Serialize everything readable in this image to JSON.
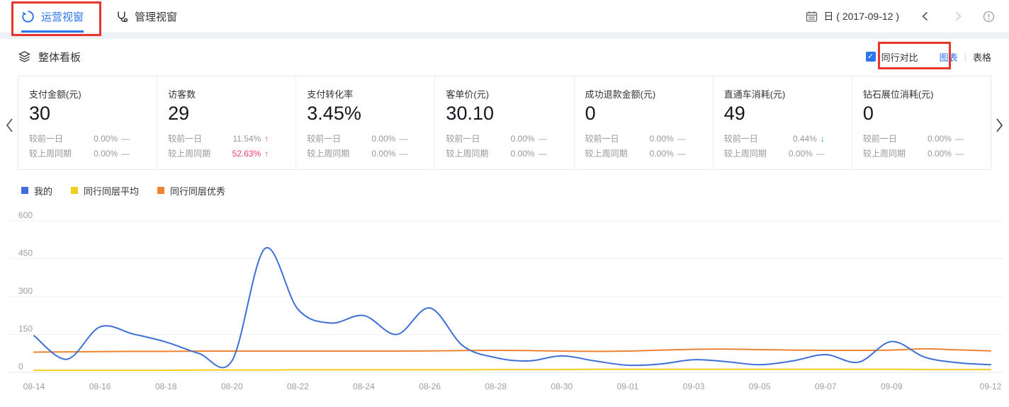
{
  "app": {
    "topbar": {
      "tabs": [
        {
          "label": "运营视窗",
          "active": true
        },
        {
          "label": "管理视窗",
          "active": false
        }
      ],
      "date_mode_label": "日 ( 2017-09-12 )"
    },
    "section": {
      "title": "整体看板",
      "peer_compare_label": "同行对比",
      "peer_compare_checked": true,
      "checkmark": "✓",
      "view_toggle": {
        "chart": "图表",
        "separator": "|",
        "table": "表格",
        "active": "图表"
      }
    },
    "cards": [
      {
        "title": "支付金额(元)",
        "value": "30",
        "rows": [
          {
            "label": "较前一日",
            "value": "0.00%",
            "trend": "flat",
            "emphasis": false
          },
          {
            "label": "较上周同期",
            "value": "0.00%",
            "trend": "flat",
            "emphasis": false
          }
        ]
      },
      {
        "title": "访客数",
        "value": "29",
        "rows": [
          {
            "label": "较前一日",
            "value": "11.54%",
            "trend": "up",
            "emphasis": false
          },
          {
            "label": "较上周同期",
            "value": "52.63%",
            "trend": "up",
            "emphasis": true
          }
        ]
      },
      {
        "title": "支付转化率",
        "value": "3.45%",
        "rows": [
          {
            "label": "较前一日",
            "value": "0.00%",
            "trend": "flat",
            "emphasis": false
          },
          {
            "label": "较上周同期",
            "value": "0.00%",
            "trend": "flat",
            "emphasis": false
          }
        ]
      },
      {
        "title": "客单价(元)",
        "value": "30.10",
        "rows": [
          {
            "label": "较前一日",
            "value": "0.00%",
            "trend": "flat",
            "emphasis": false
          },
          {
            "label": "较上周同期",
            "value": "0.00%",
            "trend": "flat",
            "emphasis": false
          }
        ]
      },
      {
        "title": "成功退款金额(元)",
        "value": "0",
        "rows": [
          {
            "label": "较前一日",
            "value": "0.00%",
            "trend": "flat",
            "emphasis": false
          },
          {
            "label": "较上周同期",
            "value": "0.00%",
            "trend": "flat",
            "emphasis": false
          }
        ]
      },
      {
        "title": "直通车消耗(元)",
        "value": "49",
        "rows": [
          {
            "label": "较前一日",
            "value": "0.44%",
            "trend": "down",
            "emphasis": false
          },
          {
            "label": "较上周同期",
            "value": "0.00%",
            "trend": "flat",
            "emphasis": false
          }
        ]
      },
      {
        "title": "钻石展位消耗(元)",
        "value": "0",
        "rows": [
          {
            "label": "较前一日",
            "value": "0.00%",
            "trend": "flat",
            "emphasis": false
          },
          {
            "label": "较上周同期",
            "value": "0.00%",
            "trend": "flat",
            "emphasis": false
          }
        ]
      }
    ],
    "legend": [
      {
        "label": "我的",
        "color": "#3E6FD8"
      },
      {
        "label": "同行同层平均",
        "color": "#F3CE1E"
      },
      {
        "label": "同行同层优秀",
        "color": "#EE8432"
      }
    ],
    "colors": {
      "accent": "#2D75EE",
      "annotation": "#E8352E",
      "up": "#F23C67",
      "down": "#0BB26C",
      "axis_text": "#9AA0A6"
    }
  },
  "chart_data": {
    "type": "line",
    "smooth": true,
    "grid": "horizontal",
    "legend_position": "top-left",
    "ylim": [
      0,
      600
    ],
    "yticks": [
      0,
      150,
      300,
      450,
      600
    ],
    "categories": [
      "08-14",
      "08-15",
      "08-16",
      "08-17",
      "08-18",
      "08-19",
      "08-20",
      "08-21",
      "08-22",
      "08-23",
      "08-24",
      "08-25",
      "08-26",
      "08-27",
      "08-28",
      "08-29",
      "08-30",
      "08-31",
      "09-01",
      "09-02",
      "09-03",
      "09-04",
      "09-05",
      "09-06",
      "09-07",
      "09-08",
      "09-09",
      "09-10",
      "09-11",
      "09-12"
    ],
    "x_tick_labels": [
      "08-14",
      "08-16",
      "08-18",
      "08-20",
      "08-22",
      "08-24",
      "08-26",
      "08-28",
      "08-30",
      "09-01",
      "09-03",
      "09-05",
      "09-07",
      "09-09",
      "09-12"
    ],
    "x_tick_indices": [
      0,
      2,
      4,
      6,
      8,
      10,
      12,
      14,
      16,
      18,
      20,
      22,
      24,
      26,
      29
    ],
    "series": [
      {
        "name": "我的",
        "color": "#3E6FD8",
        "values": [
          145,
          52,
          180,
          152,
          120,
          75,
          45,
          490,
          250,
          195,
          225,
          150,
          255,
          105,
          58,
          45,
          65,
          45,
          28,
          33,
          50,
          42,
          30,
          45,
          70,
          40,
          122,
          60,
          38,
          30
        ]
      },
      {
        "name": "同行同层平均",
        "color": "#F3CE1E",
        "values": [
          8,
          8,
          8,
          8,
          8,
          9,
          9,
          9,
          10,
          10,
          10,
          10,
          10,
          10,
          11,
          11,
          11,
          12,
          12,
          12,
          12,
          12,
          12,
          12,
          12,
          12,
          12,
          11,
          11,
          11
        ]
      },
      {
        "name": "同行同层优秀",
        "color": "#EE8432",
        "values": [
          80,
          81,
          82,
          83,
          83,
          84,
          84,
          84,
          84,
          84,
          84,
          84,
          85,
          86,
          87,
          86,
          84,
          83,
          84,
          88,
          91,
          92,
          90,
          88,
          87,
          87,
          88,
          93,
          89,
          85
        ]
      }
    ]
  }
}
